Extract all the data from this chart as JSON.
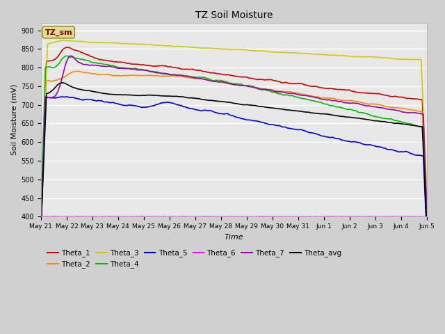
{
  "title": "TZ Soil Moisture",
  "ylabel": "Soil Moisture (mV)",
  "xlabel": "Time",
  "ylim": [
    400,
    920
  ],
  "yticks": [
    400,
    450,
    500,
    550,
    600,
    650,
    700,
    750,
    800,
    850,
    900
  ],
  "x_labels": [
    "May 21",
    "May 22",
    "May 23",
    "May 24",
    "May 25",
    "May 26",
    "May 27",
    "May 28",
    "May 29",
    "May 30",
    "May 31",
    "Jun 1",
    "Jun 2",
    "Jun 3",
    "Jun 4",
    "Jun 5"
  ],
  "num_points": 350,
  "background_color": "#e8e8e8",
  "grid_color": "#ffffff",
  "series_colors": {
    "Theta_1": "#cc0000",
    "Theta_2": "#ff8800",
    "Theta_3": "#cccc00",
    "Theta_4": "#00bb00",
    "Theta_5": "#0000cc",
    "Theta_6": "#ff00ff",
    "Theta_7": "#9900aa",
    "Theta_avg": "#000000"
  },
  "legend_box_color": "#dddd99",
  "legend_box_text": "TZ_sm",
  "legend_box_text_color": "#880000"
}
